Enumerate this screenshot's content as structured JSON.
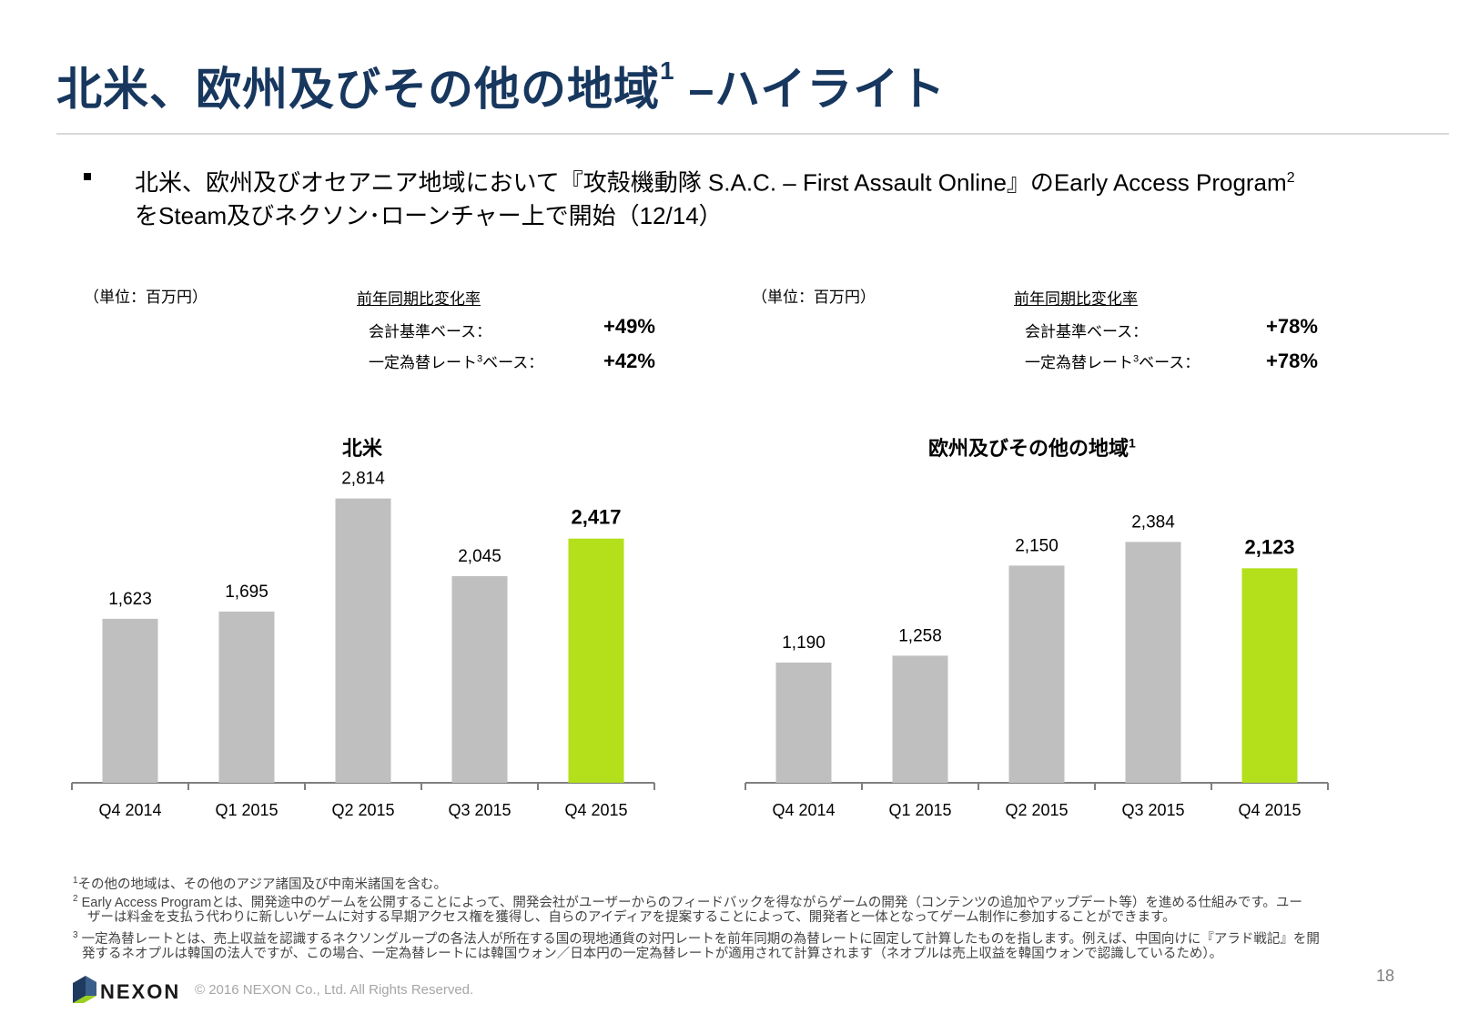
{
  "title": "北米、欧州及びその他の地域",
  "title_sup": "1",
  "title_suffix": " –ハイライト",
  "bullet": {
    "line1": "北米、欧州及びオセアニア地域において『攻殻機動隊 S.A.C. – First Assault Online』のEarly Access Program",
    "line1_sup": "2",
    "line2": "をSteam及びネクソン･ローンチャー上で開始（12/14）"
  },
  "panels": [
    {
      "unit": "（単位：百万円）",
      "yoy_header": "前年同期比変化率",
      "rows": [
        {
          "label": "会計基準ベース：",
          "value": "+49%"
        },
        {
          "label_pre": "一定為替レート",
          "label_sup": "3",
          "label_post": "ベース：",
          "value": "+42%"
        }
      ]
    },
    {
      "unit": "（単位：百万円）",
      "yoy_header": "前年同期比変化率",
      "rows": [
        {
          "label": "会計基準ベース：",
          "value": "+78%"
        },
        {
          "label_pre": "一定為替レート",
          "label_sup": "3",
          "label_post": "ベース：",
          "value": "+78%"
        }
      ]
    }
  ],
  "chart_data": [
    {
      "type": "bar",
      "title": "北米",
      "categories": [
        "Q4 2014",
        "Q1 2015",
        "Q2 2015",
        "Q3 2015",
        "Q4 2015"
      ],
      "values": [
        1623,
        1695,
        2814,
        2045,
        2417
      ],
      "value_labels": [
        "1,623",
        "1,695",
        "2,814",
        "2,045",
        "2,417"
      ],
      "highlight_index": 4,
      "colors": {
        "bar": "#bfbfbf",
        "highlight": "#b3e01a",
        "axis": "#7f7f7f"
      },
      "grid": false,
      "legend": "none"
    },
    {
      "type": "bar",
      "title": "欧州及びその他の地域",
      "title_sup": "1",
      "categories": [
        "Q4 2014",
        "Q1 2015",
        "Q2 2015",
        "Q3 2015",
        "Q4 2015"
      ],
      "values": [
        1190,
        1258,
        2150,
        2384,
        2123
      ],
      "value_labels": [
        "1,190",
        "1,258",
        "2,150",
        "2,384",
        "2,123"
      ],
      "highlight_index": 4,
      "colors": {
        "bar": "#bfbfbf",
        "highlight": "#b3e01a",
        "axis": "#7f7f7f"
      },
      "grid": false,
      "legend": "none"
    }
  ],
  "footnotes": {
    "f1_num": "1",
    "f1": "その他の地域は、その他のアジア諸国及び中南米諸国を含む。",
    "f2_num": "2",
    "f2a": "Early Access Programとは、開発途中のゲームを公開することによって、開発会社がユーザーからのフィードバックを得ながらゲームの開発（コンテンツの追加やアップデート等）を進める仕組みです。ユー",
    "f2b": "ザーは料金を支払う代わりに新しいゲームに対する早期アクセス権を獲得し、自らのアイディアを提案することによって、開発者と一体となってゲーム制作に参加することができます。",
    "f3_num": "3",
    "f3a": "一定為替レートとは、売上収益を認識するネクソングループの各法人が所在する国の現地通貨の対円レートを前年同期の為替レートに固定して計算したものを指します。例えば、中国向けに『アラド戦記』を開",
    "f3b": "発するネオプルは韓国の法人ですが、この場合、一定為替レートには韓国ウォン／日本円の一定為替レートが適用されて計算されます（ネオプルは売上収益を韓国ウォンで認識しているため）。"
  },
  "footer": {
    "logo_text": "NEXON",
    "copyright": "© 2016 NEXON Co., Ltd. All Rights Reserved.",
    "page_number": "18"
  }
}
